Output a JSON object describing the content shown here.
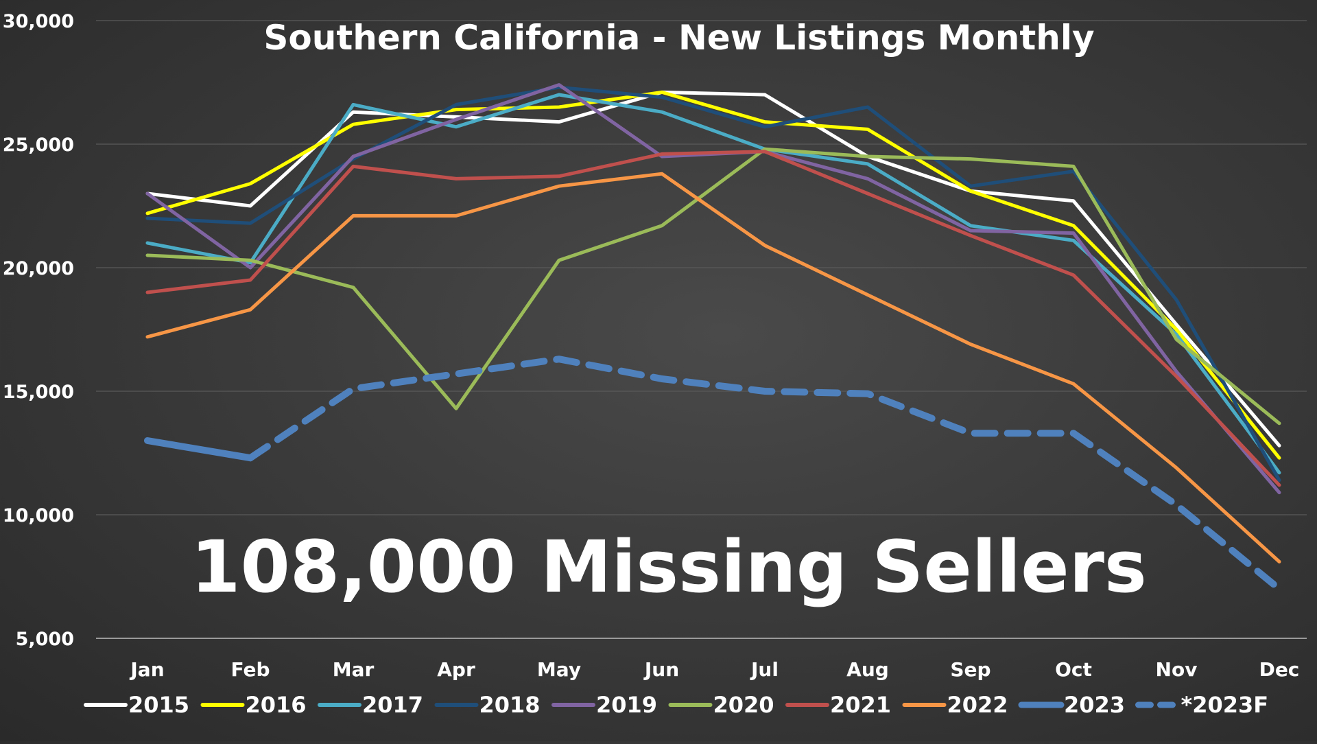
{
  "chart_data": {
    "type": "line",
    "title": "Southern California - New Listings Monthly",
    "annotation": "108,000 Missing Sellers",
    "xlabel": "",
    "ylabel": "",
    "categories": [
      "Jan",
      "Feb",
      "Mar",
      "Apr",
      "May",
      "Jun",
      "Jul",
      "Aug",
      "Sep",
      "Oct",
      "Nov",
      "Dec"
    ],
    "ylim": [
      5000,
      30000
    ],
    "yticks": [
      5000,
      10000,
      15000,
      20000,
      25000,
      30000
    ],
    "ytick_labels": [
      "5,000",
      "10,000",
      "15,000",
      "20,000",
      "25,000",
      "30,000"
    ],
    "grid": true,
    "legend_position": "bottom",
    "series": [
      {
        "name": "2015",
        "color": "#ffffff",
        "style": "solid",
        "values": [
          23000,
          22500,
          26300,
          26100,
          25900,
          27100,
          27000,
          24500,
          23100,
          22700,
          17700,
          12800
        ]
      },
      {
        "name": "2016",
        "color": "#ffff00",
        "style": "solid",
        "values": [
          22200,
          23400,
          25800,
          26400,
          26500,
          27100,
          25900,
          25600,
          23100,
          21700,
          17500,
          12300
        ]
      },
      {
        "name": "2017",
        "color": "#4bacc6",
        "style": "solid",
        "values": [
          21000,
          20200,
          26600,
          25700,
          27000,
          26300,
          24800,
          24200,
          21700,
          21100,
          17300,
          11700
        ]
      },
      {
        "name": "2018",
        "color": "#1f4e79",
        "style": "solid",
        "values": [
          22000,
          21800,
          24400,
          26600,
          27300,
          26900,
          25700,
          26500,
          23300,
          23900,
          18700,
          11400
        ]
      },
      {
        "name": "2019",
        "color": "#8064a2",
        "style": "solid",
        "values": [
          23000,
          20000,
          24500,
          26000,
          27400,
          24500,
          24700,
          23600,
          21500,
          21400,
          15800,
          10900
        ]
      },
      {
        "name": "2020",
        "color": "#9bbb59",
        "style": "solid",
        "values": [
          20500,
          20300,
          19200,
          14300,
          20300,
          21700,
          24800,
          24500,
          24400,
          24100,
          17100,
          13700
        ]
      },
      {
        "name": "2021",
        "color": "#c0504d",
        "style": "solid",
        "values": [
          19000,
          19500,
          24100,
          23600,
          23700,
          24600,
          24700,
          23000,
          21300,
          19700,
          15600,
          11200
        ]
      },
      {
        "name": "2022",
        "color": "#f79646",
        "style": "solid",
        "values": [
          17200,
          18300,
          22100,
          22100,
          23300,
          23800,
          20900,
          18900,
          16900,
          15300,
          11900,
          8100
        ]
      },
      {
        "name": "2023",
        "color": "#4f81bd",
        "style": "solid-thick",
        "values": [
          13000,
          12300,
          null,
          null,
          null,
          null,
          null,
          null,
          null,
          null,
          null,
          null
        ]
      },
      {
        "name": "*2023F",
        "color": "#4f81bd",
        "style": "dashed",
        "values": [
          null,
          12300,
          15100,
          15700,
          16300,
          15500,
          15000,
          14900,
          13300,
          13300,
          10400,
          7000
        ]
      }
    ]
  }
}
